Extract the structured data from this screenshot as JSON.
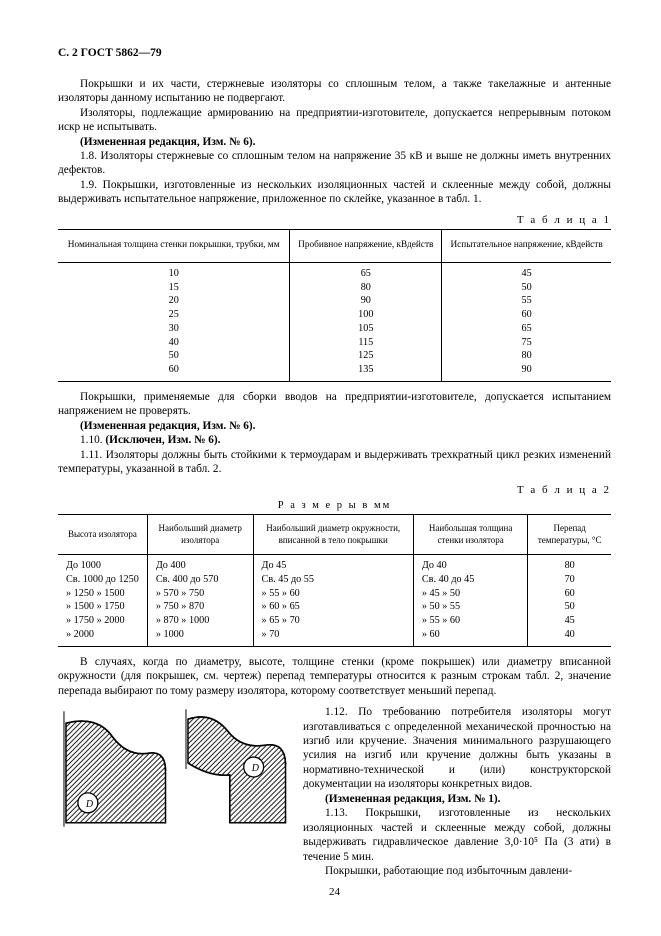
{
  "header": "С. 2 ГОСТ 5862—79",
  "p1": "Покрышки и их части, стержневые изоляторы со сплошным телом, а также такелажные и антенные изоляторы данному испытанию не подвергают.",
  "p2": "Изоляторы, подлежащие армированию на предприятии-изготовителе, допускается непрерывным потоком искр не испытывать.",
  "p3": "(Измененная редакция, Изм. № 6).",
  "p4": "1.8.  Изоляторы стержневые со сплошным телом на напряжение 35 кВ и выше не должны иметь внутренних дефектов.",
  "p5": "1.9.  Покрышки, изготовленные из нескольких изоляционных частей и склеенные между собой, должны выдерживать испытательное напряжение, приложенное по склейке, указанное в табл. 1.",
  "t1_label": "Т а б л и ц а   1",
  "t1_headers": [
    "Номинальная толщина стенки покрышки, трубки, мм",
    "Пробивное напряжение, кВдейств",
    "Испытательное напряжение, кВдейств"
  ],
  "t1_rows": [
    [
      "10",
      "65",
      "45"
    ],
    [
      "15",
      "80",
      "50"
    ],
    [
      "20",
      "90",
      "55"
    ],
    [
      "25",
      "100",
      "60"
    ],
    [
      "30",
      "105",
      "65"
    ],
    [
      "40",
      "115",
      "75"
    ],
    [
      "50",
      "125",
      "80"
    ],
    [
      "60",
      "135",
      "90"
    ]
  ],
  "p6": "Покрышки, применяемые для сборки вводов на предприятии-изготовителе, допускается испытанием напряжением не проверять.",
  "p7": "(Измененная редакция, Изм. № 6).",
  "p8": "1.10. (Исключен, Изм. № 6).",
  "p9": "1.11. Изоляторы должны быть стойкими к термоударам и выдерживать трехкратный цикл резких изменений температуры, указанной в табл. 2.",
  "t2_label": "Т а б л и ц а   2",
  "t2_caption": "Р а з м е р ы   в мм",
  "t2_headers": [
    "Высота изолятора",
    "Наибольший диаметр изолятора",
    "Наибольший диаметр окружности, вписанной в тело покрышки",
    "Наибольшая толщина стенки изолятора",
    "Перепад температуры, °С"
  ],
  "t2_rows": [
    [
      "До 1000",
      "До 400",
      "До 45",
      "До 40",
      "80"
    ],
    [
      "Св. 1000 до 1250",
      "Св. 400 до  570",
      "Св. 45 до 55",
      "Св. 40 до 45",
      "70"
    ],
    [
      "  »   1250  »  1500",
      "  »   570  »   750",
      "  »    55 » 60",
      "  »   45 »  50",
      "60"
    ],
    [
      "  »   1500  »  1750",
      "  »   750  »   870",
      "  »    60 » 65",
      "  »   50 »  55",
      "50"
    ],
    [
      "  »   1750  »  2000",
      "  »   870  »  1000",
      "  »    65 » 70",
      "  »   55 »  60",
      "45"
    ],
    [
      "  »   2000",
      "  » 1000",
      "  »    70",
      "  »   60",
      "40"
    ]
  ],
  "p10": "В случаях, когда по диаметру, высоте, толщине стенки (кроме покрышек) или диаметру вписанной окружности (для покрышек, см. чертеж) перепад температуры относится к разным строкам табл. 2, значение перепада выбирают по тому размеру изолятора, которому соответствует меньший перепад.",
  "p11": "1.12.  По требованию потребителя изоляторы могут изготавливаться с определенной механической прочностью на изгиб или кручение. Значения минимального разрушающего усилия на изгиб или кручение должны быть указаны в нормативно-технической и (или) конструкторской документации на изоляторы конкретных видов.",
  "p12": "(Измененная редакция, Изм. № 1).",
  "p13": "1.13.  Покрышки, изготовленные из нескольких изоляционных частей и склеенные между собой, должны выдерживать гидравлическое давление 3,0·10⁵ Па (3 ати) в течение 5 мин.",
  "p14": "Покрышки, работающие под избыточным давлени-",
  "pagenum": "24"
}
